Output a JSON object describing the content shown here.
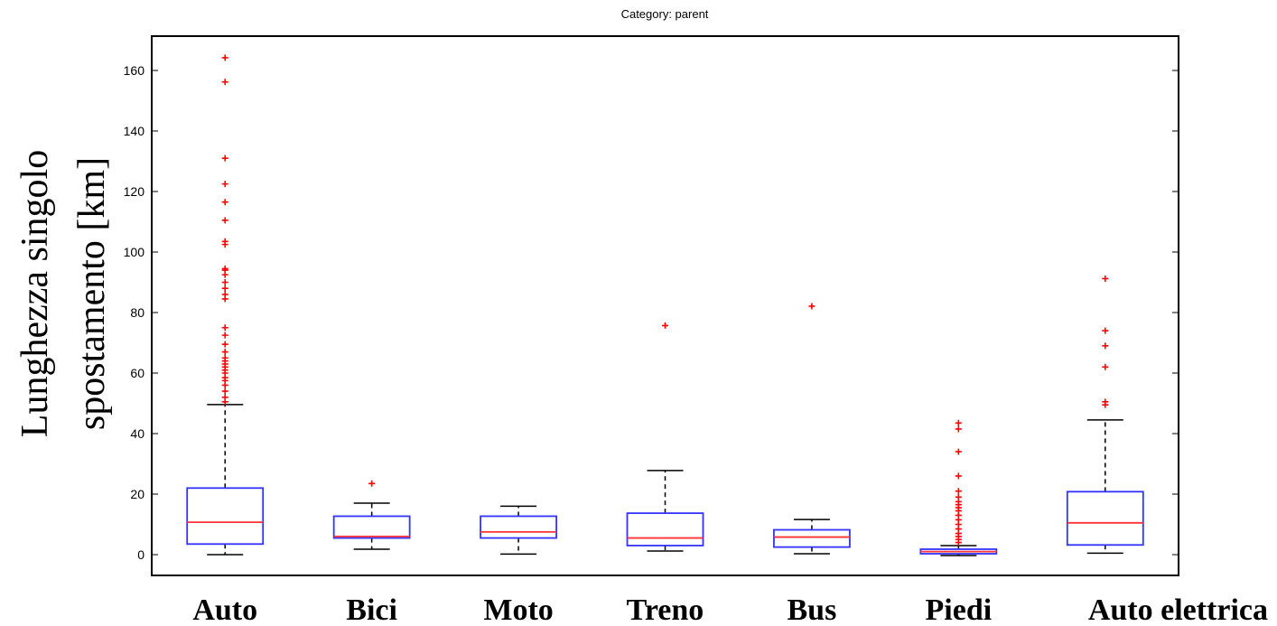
{
  "chart_data": {
    "type": "box",
    "title": "Category: parent",
    "ylabel_lines": [
      "Lunghezza singolo",
      "spostamento [km]"
    ],
    "xlabel": "",
    "ylim": [
      -8,
      171
    ],
    "yticks": [
      0,
      20,
      40,
      60,
      80,
      100,
      120,
      140,
      160
    ],
    "grid": false,
    "colors": {
      "box": "#3333ff",
      "median": "#ff3333",
      "whisker": "#000000",
      "outlier": "#ff0000"
    },
    "categories": [
      "Auto",
      "Bici",
      "Moto",
      "Treno",
      "Bus",
      "Piedi",
      "Auto elettrica"
    ],
    "boxes": [
      {
        "category": "Auto",
        "whisker_low": 0,
        "q1": 3.5,
        "median": 10.7,
        "q3": 22,
        "whisker_high": 49.6,
        "outliers": [
          50.5,
          52,
          54,
          56,
          57.5,
          58.5,
          60,
          61,
          62,
          63,
          64,
          65,
          67,
          69.5,
          72.5,
          75,
          84.5,
          86,
          88,
          90,
          92.5,
          94,
          94.5,
          102.5,
          103.5,
          110.5,
          116.5,
          122.5,
          131,
          156.2,
          164.2
        ]
      },
      {
        "category": "Bici",
        "whisker_low": 1.8,
        "q1": 5.5,
        "median": 6.0,
        "q3": 12.7,
        "whisker_high": 17,
        "outliers": [
          23.5
        ]
      },
      {
        "category": "Moto",
        "whisker_low": 0.2,
        "q1": 5.5,
        "median": 7.5,
        "q3": 12.7,
        "whisker_high": 16,
        "outliers": []
      },
      {
        "category": "Treno",
        "whisker_low": 1.2,
        "q1": 3.0,
        "median": 5.5,
        "q3": 13.7,
        "whisker_high": 27.8,
        "outliers": [
          75.7
        ]
      },
      {
        "category": "Bus",
        "whisker_low": 0.3,
        "q1": 2.5,
        "median": 5.8,
        "q3": 8.2,
        "whisker_high": 11.6,
        "outliers": [
          82.1
        ]
      },
      {
        "category": "Piedi",
        "whisker_low": -0.3,
        "q1": 0.3,
        "median": 1.0,
        "q3": 1.8,
        "whisker_high": 3.0,
        "outliers": [
          4,
          5,
          6,
          7,
          8.5,
          10,
          11.5,
          13,
          14.5,
          15.5,
          16.5,
          17.5,
          19,
          21,
          26,
          34,
          41.5,
          43.5
        ]
      },
      {
        "category": "Auto elettrica",
        "whisker_low": 0.5,
        "q1": 3.2,
        "median": 10.5,
        "q3": 20.8,
        "whisker_high": 44.5,
        "outliers": [
          49.5,
          50.5,
          62,
          69,
          74,
          91.2
        ]
      }
    ]
  }
}
